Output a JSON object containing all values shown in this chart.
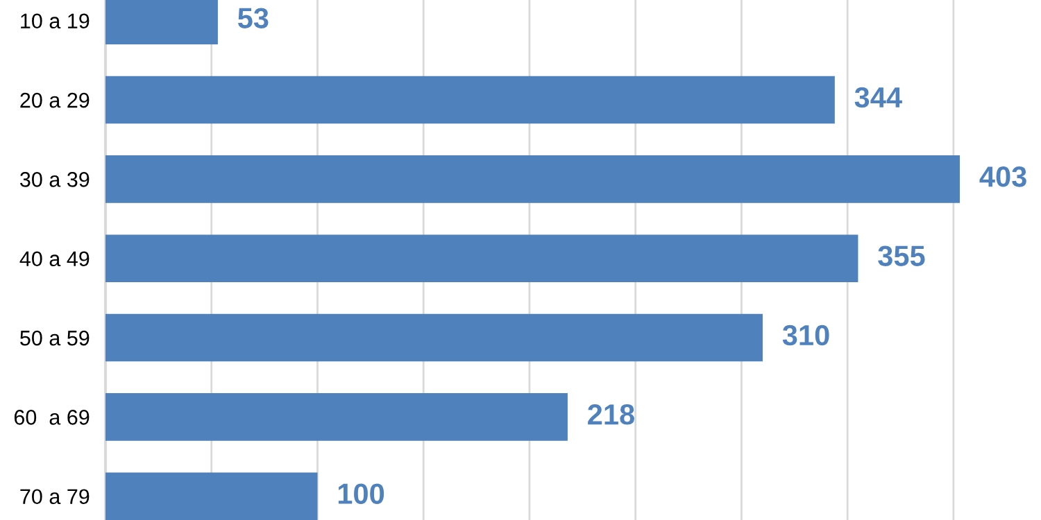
{
  "chart_data": {
    "type": "bar",
    "orientation": "horizontal",
    "categories": [
      "10 a 19",
      "20 a 29",
      "30 a 39",
      "40 a 49",
      "50 a 59",
      "60  a 69",
      "70 a 79"
    ],
    "values": [
      53,
      344,
      403,
      355,
      310,
      218,
      100
    ],
    "color": "#4f81bd",
    "data_labels": true,
    "grid": "x",
    "tick_labels": "y",
    "xticks": [
      {
        "value": 0,
        "label": null
      },
      {
        "value": 50,
        "label": null
      },
      {
        "value": 100,
        "label": null
      },
      {
        "value": 150,
        "label": null
      },
      {
        "value": 200,
        "label": null
      },
      {
        "value": 250,
        "label": null
      },
      {
        "value": 300,
        "label": null
      },
      {
        "value": 350,
        "label": null
      },
      {
        "value": 400,
        "label": null
      }
    ]
  }
}
